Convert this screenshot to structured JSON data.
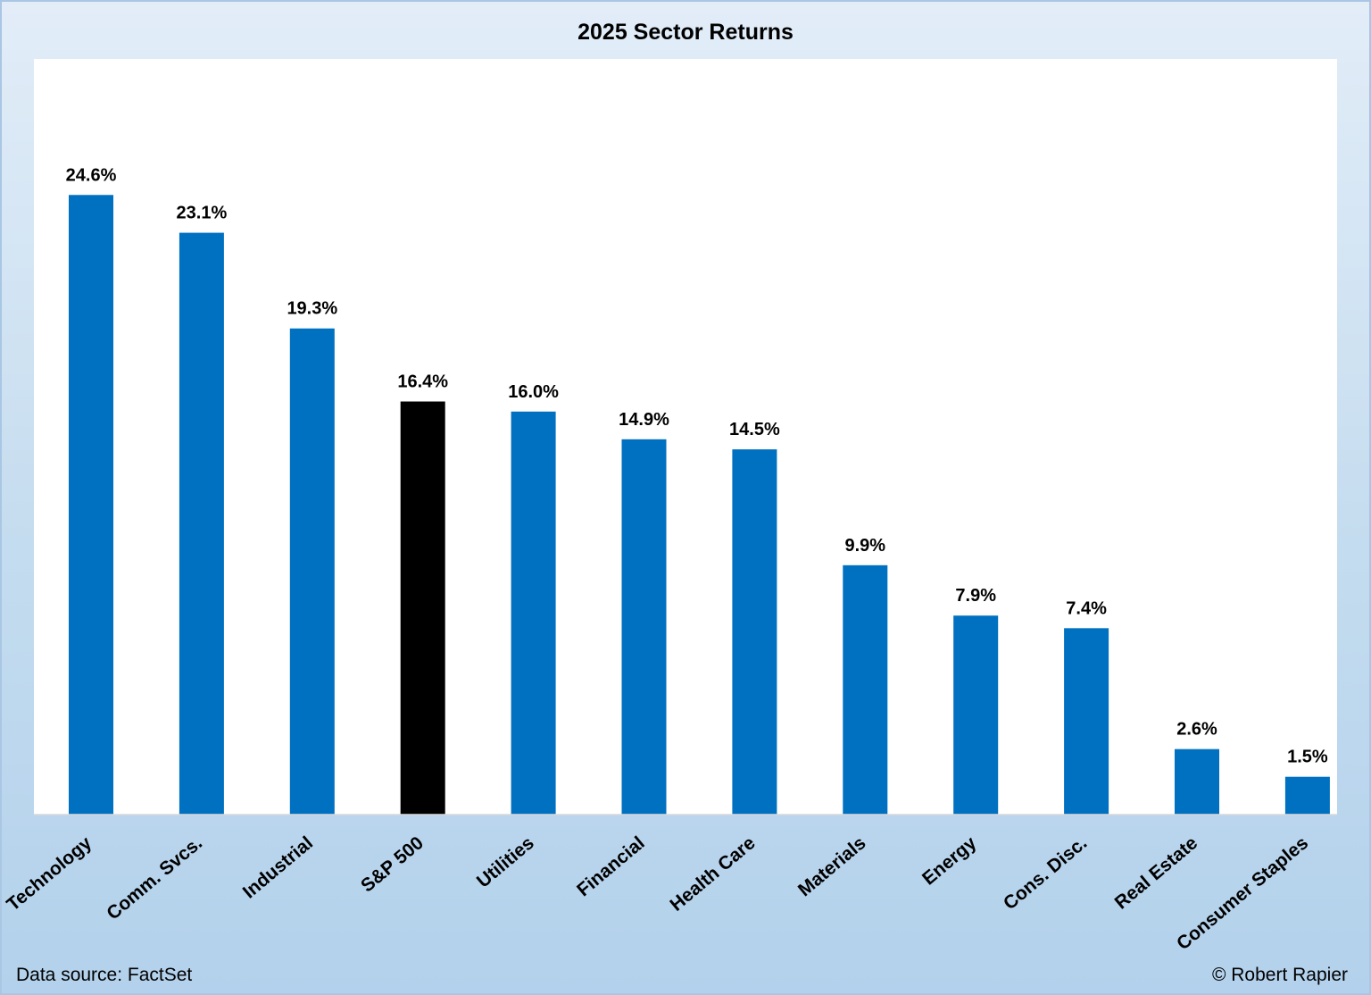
{
  "chart_data": {
    "type": "bar",
    "title": "2025 Sector Returns",
    "categories": [
      "Technology",
      "Comm. Svcs.",
      "Industrial",
      "S&P 500",
      "Utilities",
      "Financial",
      "Health Care",
      "Materials",
      "Energy",
      "Cons. Disc.",
      "Real Estate",
      "Consumer Staples"
    ],
    "values": [
      24.6,
      23.1,
      19.3,
      16.4,
      16.0,
      14.9,
      14.5,
      9.9,
      7.9,
      7.4,
      2.6,
      1.5
    ],
    "value_labels": [
      "24.6%",
      "23.1%",
      "19.3%",
      "16.4%",
      "16.0%",
      "14.9%",
      "14.5%",
      "9.9%",
      "7.9%",
      "7.4%",
      "2.6%",
      "1.5%"
    ],
    "ylim": [
      0,
      30
    ],
    "grid": false,
    "legend": "none",
    "colors": {
      "default_bar": "#0070C0",
      "highlight_bar": "#000000",
      "highlight_category": "S&P 500",
      "plot_background": "#FFFFFF"
    }
  },
  "footer": {
    "source": "Data source: FactSet",
    "copyright": "© Robert Rapier"
  }
}
